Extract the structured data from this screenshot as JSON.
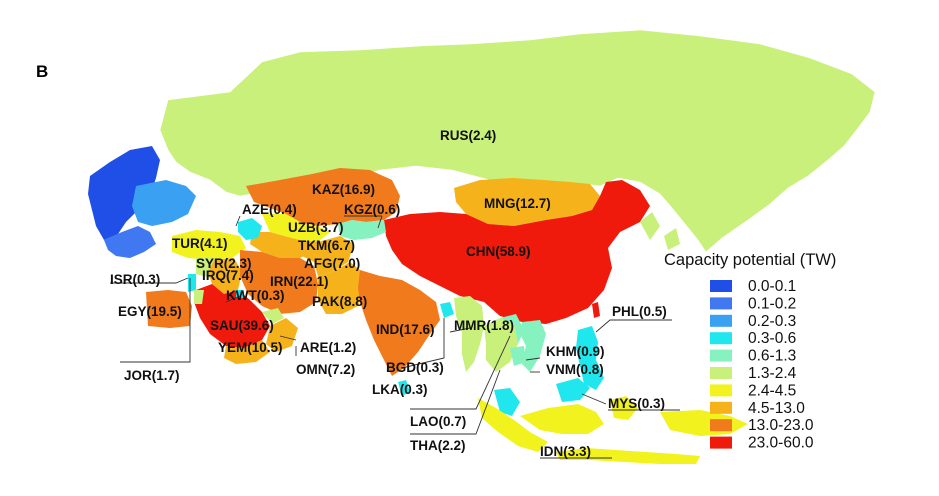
{
  "panel_label": "B",
  "legend": {
    "title": "Capacity potential (TW)",
    "classes": [
      {
        "label": "0.0-0.1",
        "color": "#1f4fe6"
      },
      {
        "label": "0.1-0.2",
        "color": "#3f78f0"
      },
      {
        "label": "0.2-0.3",
        "color": "#3aa0f2"
      },
      {
        "label": "0.3-0.6",
        "color": "#20e6ee"
      },
      {
        "label": "0.6-1.3",
        "color": "#86f2c0"
      },
      {
        "label": "1.3-2.4",
        "color": "#c8f07a"
      },
      {
        "label": "2.4-4.5",
        "color": "#f2f21e"
      },
      {
        "label": "4.5-13.0",
        "color": "#f5b21a"
      },
      {
        "label": "13.0-23.0",
        "color": "#f07a1c"
      },
      {
        "label": "23.0-60.0",
        "color": "#f01a0c"
      }
    ]
  },
  "countries": {
    "rus": "RUS(2.4)",
    "kaz": "KAZ(16.9)",
    "mng": "MNG(12.7)",
    "chn": "CHN(58.9)",
    "aze": "AZE(0.4)",
    "kgz": "KGZ(0.6)",
    "uzb": "UZB(3.7)",
    "tkm": "TKM(6.7)",
    "tur": "TUR(4.1)",
    "afg": "AFG(7.0)",
    "syr": "SYR(2.3)",
    "irn": "IRN(22.1)",
    "irq": "IRQ(7.4)",
    "isr": "ISR(0.3)",
    "kwt": "KWT(0.3)",
    "pak": "PAK(8.8)",
    "egy": "EGY(19.5)",
    "sau": "SAU(39.6)",
    "ind": "IND(17.6)",
    "mmr": "MMR(1.8)",
    "phl": "PHL(0.5)",
    "are": "ARE(1.2)",
    "yem": "YEM(10.5)",
    "omn": "OMN(7.2)",
    "bgd": "BGD(0.3)",
    "khm": "KHM(0.9)",
    "vnm": "VNM(0.8)",
    "jor": "JOR(1.7)",
    "lka": "LKA(0.3)",
    "mys": "MYS(0.3)",
    "lao": "LAO(0.7)",
    "tha": "THA(2.2)",
    "idn": "IDN(3.3)"
  }
}
